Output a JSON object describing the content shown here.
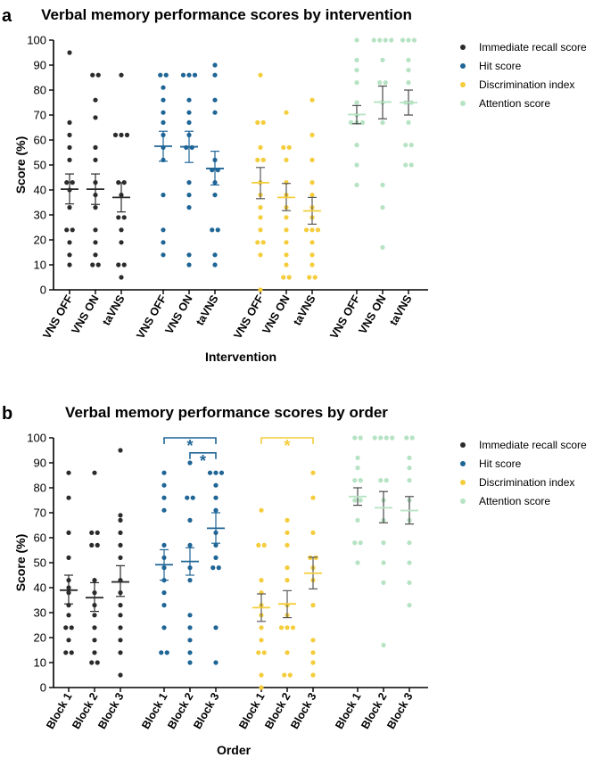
{
  "colors": {
    "immediate": "#2b2b2b",
    "hit": "#1f6596",
    "discrimination": "#f5cd3c",
    "attention": "#b6e3c3",
    "axis": "#000000"
  },
  "panels": [
    {
      "letter": "a"
    },
    {
      "letter": "b"
    }
  ],
  "chart_data": [
    {
      "type": "scatter",
      "title": "Verbal memory performance scores by intervention",
      "xlabel": "Intervention",
      "ylabel": "Score (%)",
      "ylim": [
        0,
        100
      ],
      "yticks": [
        0,
        10,
        20,
        30,
        40,
        50,
        60,
        70,
        80,
        90,
        100
      ],
      "legend_position": "top-right",
      "legend": [
        "Immediate recall score",
        "Hit score",
        "Discrimination index",
        "Attention score"
      ],
      "groups": [
        {
          "name": "Immediate recall score",
          "color_key": "immediate",
          "categories": [
            "VNS OFF",
            "VNS ON",
            "taVNS"
          ],
          "points": [
            [
              95,
              67,
              62,
              57,
              52,
              43,
              43,
              40,
              33,
              24,
              24,
              19,
              14,
              10
            ],
            [
              86,
              86,
              76,
              69,
              57,
              52,
              43,
              38,
              33,
              24,
              19,
              14,
              10,
              10
            ],
            [
              86,
              62,
              62,
              62,
              43,
              43,
              38,
              29,
              29,
              24,
              19,
              10,
              10,
              5
            ]
          ],
          "means": [
            40.3,
            40.3,
            37.0
          ],
          "sem_low": [
            34.4,
            34.2,
            31.2
          ],
          "sem_high": [
            46.4,
            46.4,
            42.9
          ]
        },
        {
          "name": "Hit score",
          "color_key": "hit",
          "categories": [
            "VNS OFF",
            "VNS ON",
            "taVNS"
          ],
          "points": [
            [
              86,
              86,
              81,
              76,
              71,
              67,
              62,
              57,
              52,
              38,
              24,
              19,
              14
            ],
            [
              86,
              86,
              86,
              76,
              71,
              67,
              62,
              57,
              57,
              43,
              38,
              33,
              14,
              10
            ],
            [
              90,
              86,
              76,
              71,
              52,
              48,
              48,
              43,
              38,
              24,
              24,
              14,
              10
            ]
          ],
          "means": [
            57.5,
            57.3,
            48.6
          ],
          "sem_low": [
            51.5,
            51.0,
            42.0
          ],
          "sem_high": [
            63.5,
            63.5,
            55.5
          ]
        },
        {
          "name": "Discrimination index",
          "color_key": "discrimination",
          "categories": [
            "VNS OFF",
            "VNS ON",
            "taVNS"
          ],
          "points": [
            [
              86,
              67,
              67,
              57,
              52,
              52,
              43,
              38,
              33,
              29,
              24,
              19,
              19,
              14,
              0
            ],
            [
              71,
              57,
              57,
              52,
              43,
              38,
              33,
              29,
              24,
              19,
              14,
              10,
              5,
              5
            ],
            [
              76,
              62,
              52,
              43,
              38,
              33,
              29,
              24,
              24,
              24,
              19,
              14,
              10,
              5,
              5
            ]
          ],
          "means": [
            42.9,
            37.0,
            31.6
          ],
          "sem_low": [
            36.5,
            31.7,
            26.3
          ],
          "sem_high": [
            49.0,
            42.6,
            37.0
          ]
        },
        {
          "name": "Attention score",
          "color_key": "attention",
          "categories": [
            "VNS OFF",
            "VNS ON",
            "taVNS"
          ],
          "points": [
            [
              100,
              92,
              88,
              83,
              75,
              70,
              67,
              67,
              67,
              58,
              50,
              42
            ],
            [
              100,
              100,
              100,
              100,
              92,
              83,
              83,
              75,
              67,
              42,
              33,
              17
            ],
            [
              100,
              100,
              100,
              92,
              88,
              83,
              75,
              75,
              67,
              58,
              58,
              50,
              50
            ]
          ],
          "means": [
            70.2,
            75.2,
            75.0
          ],
          "sem_low": [
            66.5,
            68.5,
            70.0
          ],
          "sem_high": [
            73.8,
            81.6,
            80.0
          ]
        }
      ]
    },
    {
      "type": "scatter",
      "title": "Verbal memory performance scores by order",
      "xlabel": "Order",
      "ylabel": "Score (%)",
      "ylim": [
        0,
        100
      ],
      "yticks": [
        0,
        10,
        20,
        30,
        40,
        50,
        60,
        70,
        80,
        90,
        100
      ],
      "legend_position": "top-right",
      "legend": [
        "Immediate recall score",
        "Hit score",
        "Discrimination index",
        "Attention score"
      ],
      "groups": [
        {
          "name": "Immediate recall score",
          "color_key": "immediate",
          "categories": [
            "Block 1",
            "Block 2",
            "Block 3"
          ],
          "points": [
            [
              86,
              76,
              62,
              52,
              43,
              40,
              38,
              33,
              29,
              24,
              24,
              19,
              14,
              14
            ],
            [
              86,
              62,
              62,
              57,
              57,
              43,
              38,
              33,
              29,
              24,
              19,
              14,
              10,
              10
            ],
            [
              95,
              69,
              67,
              62,
              57,
              52,
              43,
              38,
              33,
              29,
              24,
              19,
              14,
              5
            ]
          ],
          "means": [
            39.0,
            36.0,
            42.3
          ],
          "sem_low": [
            33.5,
            30.5,
            36.5
          ],
          "sem_high": [
            45.0,
            42.0,
            48.8
          ]
        },
        {
          "name": "Hit score",
          "color_key": "hit",
          "categories": [
            "Block 1",
            "Block 2",
            "Block 3"
          ],
          "points": [
            [
              86,
              81,
              76,
              71,
              57,
              52,
              48,
              43,
              38,
              33,
              24,
              14,
              14
            ],
            [
              90,
              76,
              76,
              67,
              57,
              48,
              43,
              29,
              24,
              19,
              14,
              10
            ],
            [
              86,
              86,
              86,
              81,
              76,
              71,
              62,
              57,
              52,
              48,
              48,
              24,
              10
            ]
          ],
          "means": [
            49.2,
            50.5,
            63.8
          ],
          "sem_low": [
            43.0,
            45.0,
            57.8
          ],
          "sem_high": [
            55.2,
            56.0,
            70.0
          ]
        },
        {
          "name": "Discrimination index",
          "color_key": "discrimination",
          "categories": [
            "Block 1",
            "Block 2",
            "Block 3"
          ],
          "points": [
            [
              71,
              57,
              57,
              43,
              38,
              33,
              29,
              24,
              19,
              14,
              14,
              5,
              0
            ],
            [
              67,
              62,
              57,
              48,
              43,
              33,
              29,
              24,
              24,
              24,
              14,
              5,
              5
            ],
            [
              86,
              76,
              62,
              52,
              52,
              48,
              43,
              33,
              19,
              14,
              10,
              5
            ]
          ],
          "means": [
            32.0,
            33.5,
            45.8
          ],
          "sem_low": [
            26.5,
            28.0,
            39.5
          ],
          "sem_high": [
            37.5,
            38.8,
            52.2
          ]
        },
        {
          "name": "Attention score",
          "color_key": "attention",
          "categories": [
            "Block 1",
            "Block 2",
            "Block 3"
          ],
          "points": [
            [
              100,
              100,
              92,
              88,
              83,
              83,
              75,
              75,
              67,
              58,
              58,
              50
            ],
            [
              100,
              100,
              100,
              100,
              83,
              83,
              75,
              67,
              58,
              50,
              42,
              17
            ],
            [
              100,
              100,
              92,
              88,
              83,
              75,
              67,
              58,
              50,
              42,
              33
            ]
          ],
          "means": [
            76.5,
            72.0,
            70.9
          ],
          "sem_low": [
            73.0,
            66.0,
            65.5
          ],
          "sem_high": [
            80.0,
            78.5,
            76.5
          ]
        }
      ],
      "significance": [
        {
          "group": 1,
          "from": 0,
          "to": 2,
          "y": 100,
          "label": "*"
        },
        {
          "group": 1,
          "from": 1,
          "to": 2,
          "y": 94,
          "label": "*"
        },
        {
          "group": 2,
          "from": 0,
          "to": 2,
          "y": 100,
          "label": "*"
        }
      ]
    }
  ]
}
